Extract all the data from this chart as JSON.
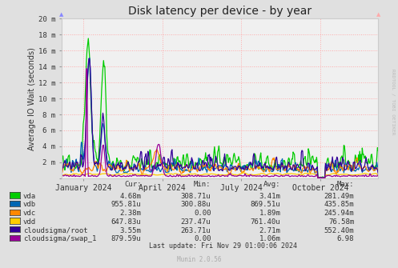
{
  "title": "Disk latency per device - by year",
  "ylabel": "Average IO Wait (seconds)",
  "background_color": "#e0e0e0",
  "plot_bg_color": "#f0f0f0",
  "grid_color": "#ffaaaa",
  "colors": {
    "vda": "#00cc00",
    "vdb": "#0066b3",
    "vdc": "#ff8800",
    "vdd": "#ffcc00",
    "cloudsigma/root": "#330099",
    "cloudsigma/swap_1": "#990099"
  },
  "ytick_labels": [
    "",
    "2 m",
    "4 m",
    "6 m",
    "8 m",
    "10 m",
    "12 m",
    "14 m",
    "16 m",
    "18 m",
    "20 m"
  ],
  "ytick_vals": [
    0.0,
    0.002,
    0.004,
    0.006,
    0.008,
    0.01,
    0.012,
    0.014,
    0.016,
    0.018,
    0.02
  ],
  "xtick_labels": [
    "January 2024",
    "April 2024",
    "July 2024",
    "October 2024"
  ],
  "xtick_positions": [
    0.0685,
    0.318,
    0.568,
    0.818
  ],
  "legend_header": [
    "Cur:",
    "Min:",
    "Avg:",
    "Max:"
  ],
  "legend": [
    {
      "label": "vda",
      "color": "#00cc00",
      "cur": "4.68m",
      "min": "308.71u",
      "avg": "3.41m",
      "max": "281.49m"
    },
    {
      "label": "vdb",
      "color": "#0066b3",
      "cur": "955.81u",
      "min": "300.88u",
      "avg": "869.51u",
      "max": "435.85m"
    },
    {
      "label": "vdc",
      "color": "#ff8800",
      "cur": "2.38m",
      "min": "0.00",
      "avg": "1.89m",
      "max": "245.94m"
    },
    {
      "label": "vdd",
      "color": "#ffcc00",
      "cur": "647.83u",
      "min": "237.47u",
      "avg": "761.40u",
      "max": "76.58m"
    },
    {
      "label": "cloudsigma/root",
      "color": "#330099",
      "cur": "3.55m",
      "min": "263.71u",
      "avg": "2.71m",
      "max": "552.40m"
    },
    {
      "label": "cloudsigma/swap_1",
      "color": "#990099",
      "cur": "879.59u",
      "min": "0.00",
      "avg": "1.06m",
      "max": "6.98"
    }
  ],
  "footer": "Last update: Fri Nov 29 01:00:06 2024",
  "munin_version": "Munin 2.0.56",
  "rrdtool_label": "RRDTOOL / TOBI OETIKER",
  "ylim": [
    0.0,
    0.02
  ],
  "xlim": [
    0.0,
    1.0
  ],
  "np_seed": 42
}
